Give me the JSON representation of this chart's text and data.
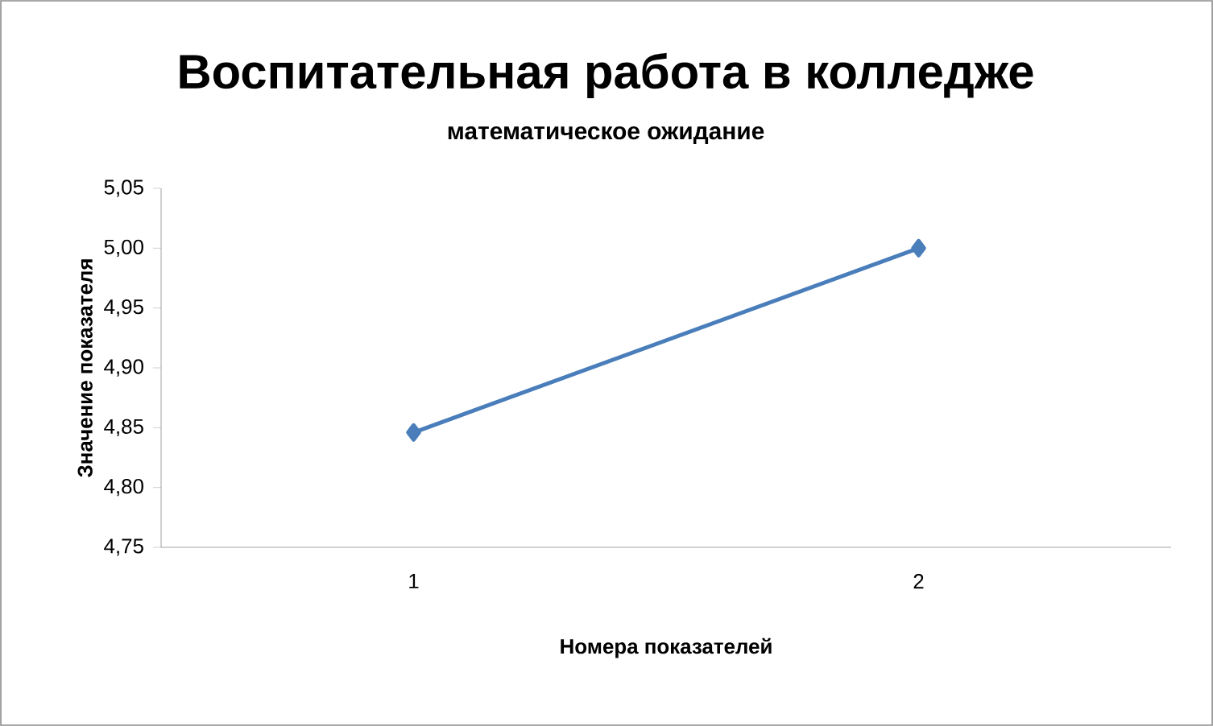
{
  "chart_data": {
    "type": "line",
    "title": "Воспитательная работа в колледже",
    "subtitle": "математическое ожидание",
    "xlabel": "Номера показателей",
    "ylabel": "Значение показателя",
    "categories": [
      "1",
      "2"
    ],
    "series": [
      {
        "color": "#4a7ebb",
        "values": [
          4.846,
          5.0
        ]
      }
    ],
    "ylim": [
      4.75,
      5.05
    ],
    "yticks": [
      {
        "value": 4.75,
        "label": "4,75"
      },
      {
        "value": 4.8,
        "label": "4,80"
      },
      {
        "value": 4.85,
        "label": "4,85"
      },
      {
        "value": 4.9,
        "label": "4,90"
      },
      {
        "value": 4.95,
        "label": "4,95"
      },
      {
        "value": 5.0,
        "label": "5,00"
      },
      {
        "value": 5.05,
        "label": "5,05"
      }
    ],
    "grid": false,
    "marker": "diamond",
    "line_style": "solid"
  }
}
